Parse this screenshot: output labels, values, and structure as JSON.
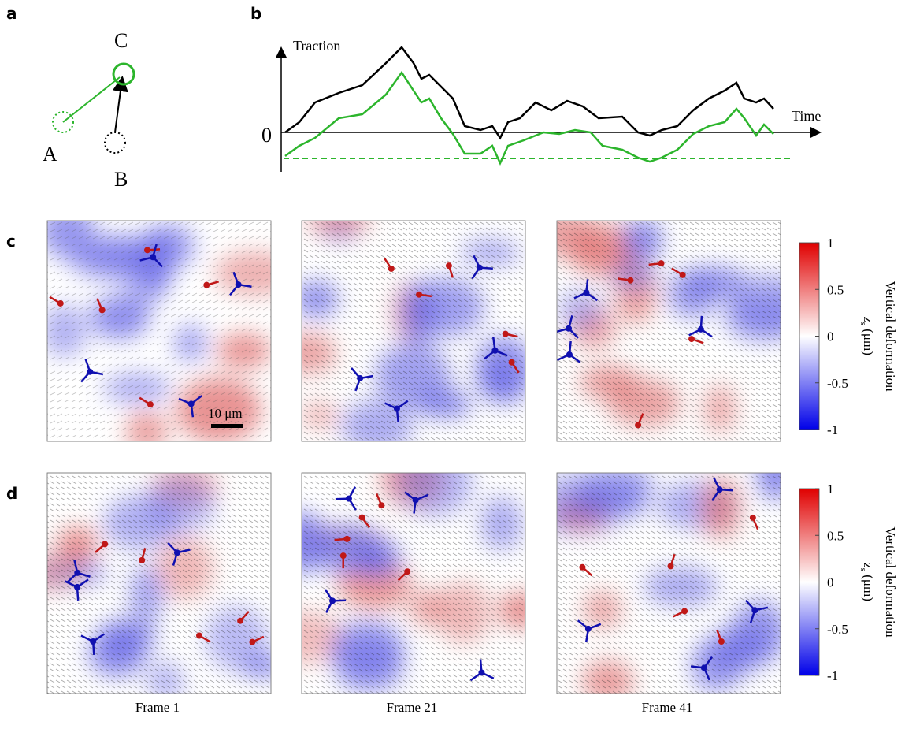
{
  "panel_labels": {
    "a": "a",
    "b": "b",
    "c": "c",
    "d": "d"
  },
  "panel_a": {
    "points": {
      "A": "A",
      "B": "B",
      "C": "C"
    }
  },
  "panel_b": {
    "y_label": "Traction",
    "x_label": "Time",
    "zero": "0"
  },
  "scale_bar": "10 μm",
  "colorbar": {
    "ticks": [
      1,
      0.5,
      0,
      -0.5,
      -1
    ],
    "label": "Vertical deformation",
    "unit_symbol": "z",
    "unit_subscript": "s",
    "unit": " (μm)"
  },
  "frames": [
    "Frame 1",
    "Frame 21",
    "Frame 41"
  ]
}
